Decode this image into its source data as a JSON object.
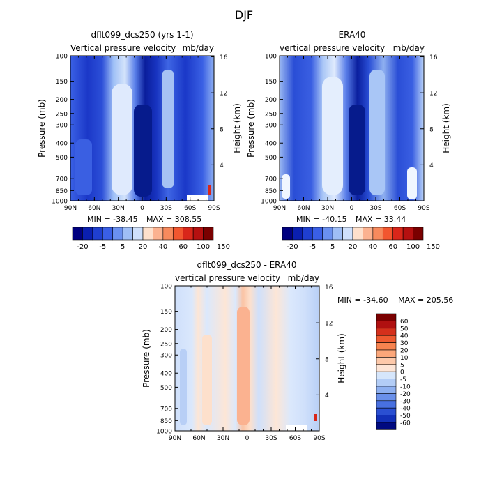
{
  "figure": {
    "title": "DJF"
  },
  "chart_data": [
    {
      "type": "heatmap",
      "title": "dflt099_dcs250 (yrs 1-1)",
      "subtitle_left": "Vertical pressure velocity",
      "subtitle_right": "mb/day",
      "ylabel": "Pressure (mb)",
      "ylabel_right": "Height (km)",
      "x_ticks": [
        "90N",
        "60N",
        "30N",
        "0",
        "30S",
        "60S",
        "90S"
      ],
      "y_ticks": [
        "100",
        "150",
        "200",
        "250",
        "300",
        "400",
        "500",
        "700",
        "850",
        "1000"
      ],
      "height_ticks": [
        "16",
        "12",
        "8",
        "4"
      ],
      "min_label": "MIN = -38.45",
      "max_label": "MAX = 308.55",
      "colorbar_labels": [
        "-20",
        "-5",
        "5",
        "20",
        "40",
        "60",
        "100",
        "150"
      ],
      "colorbar_colors": [
        "#000080",
        "#0a1fb0",
        "#1f3fd0",
        "#3a5fe6",
        "#6a90f0",
        "#9fbef6",
        "#cfe0fb",
        "#fde0cc",
        "#fbb290",
        "#f78a5d",
        "#f2562f",
        "#d9261a",
        "#b51010",
        "#7a0000"
      ]
    },
    {
      "type": "heatmap",
      "title": "ERA40",
      "subtitle_left": "vertical pressure velocity",
      "subtitle_right": "mb/day",
      "ylabel": "Pressure (mb)",
      "ylabel_right": "Height (km)",
      "x_ticks": [
        "90N",
        "60N",
        "30N",
        "0",
        "30S",
        "60S",
        "90S"
      ],
      "y_ticks": [
        "100",
        "150",
        "200",
        "250",
        "300",
        "400",
        "500",
        "700",
        "850",
        "1000"
      ],
      "height_ticks": [
        "16",
        "12",
        "8",
        "4"
      ],
      "min_label": "MIN = -40.15",
      "max_label": "MAX = 33.44",
      "colorbar_labels": [
        "-20",
        "-5",
        "5",
        "20",
        "40",
        "60",
        "100",
        "150"
      ],
      "colorbar_colors": [
        "#000080",
        "#0a1fb0",
        "#1f3fd0",
        "#3a5fe6",
        "#6a90f0",
        "#9fbef6",
        "#cfe0fb",
        "#fde0cc",
        "#fbb290",
        "#f78a5d",
        "#f2562f",
        "#d9261a",
        "#b51010",
        "#7a0000"
      ]
    },
    {
      "type": "heatmap",
      "title": "dflt099_dcs250 - ERA40",
      "subtitle_left": "vertical pressure velocity",
      "subtitle_right": "mb/day",
      "ylabel": "Pressure (mb)",
      "ylabel_right": "Height (km)",
      "x_ticks": [
        "90N",
        "60N",
        "30N",
        "0",
        "30S",
        "60S",
        "90S"
      ],
      "y_ticks": [
        "100",
        "150",
        "200",
        "250",
        "300",
        "400",
        "500",
        "700",
        "850",
        "1000"
      ],
      "height_ticks": [
        "16",
        "12",
        "8",
        "4"
      ],
      "min_label": "MIN = -34.60",
      "max_label": "MAX = 205.56",
      "colorbar_labels": [
        "60",
        "50",
        "40",
        "30",
        "20",
        "10",
        "5",
        "0",
        "-5",
        "-10",
        "-20",
        "-30",
        "-40",
        "-50",
        "-60"
      ],
      "colorbar_colors": [
        "#7a0000",
        "#b01010",
        "#d5301c",
        "#ee5a30",
        "#f7834f",
        "#fba77a",
        "#fdc9aa",
        "#fde5d6",
        "#d6e6fb",
        "#b3cdf6",
        "#8eb0f0",
        "#6a90ea",
        "#4870e0",
        "#2a4fd2",
        "#1230b8",
        "#000a80"
      ]
    }
  ]
}
